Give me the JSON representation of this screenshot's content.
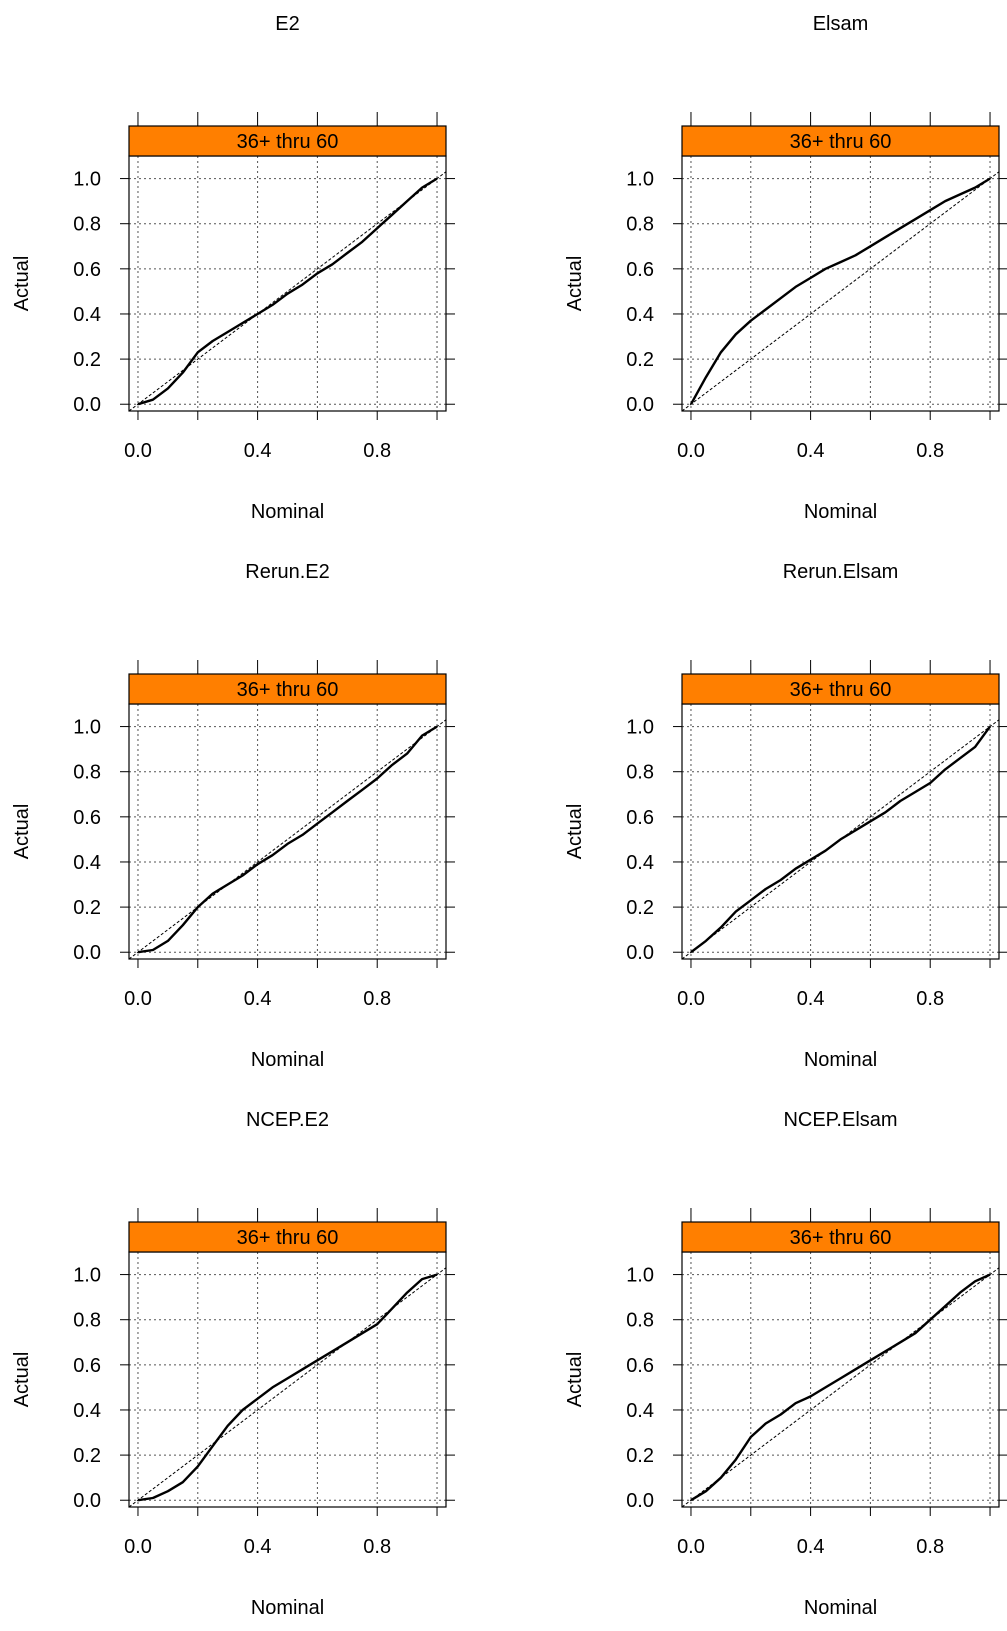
{
  "chart_data": [
    {
      "type": "line",
      "title": "E2",
      "strip_label": "36+ thru 60",
      "xlabel": "Nominal",
      "ylabel": "Actual",
      "xlim": [
        -0.03,
        1.03
      ],
      "ylim": [
        -0.03,
        1.1
      ],
      "xticks": [
        0.0,
        0.4,
        0.8
      ],
      "xtick_labels": [
        "0.0",
        "0.4",
        "0.8"
      ],
      "yticks": [
        0.0,
        0.2,
        0.4,
        0.6,
        0.8,
        1.0
      ],
      "ytick_labels": [
        "0.0",
        "0.2",
        "0.4",
        "0.6",
        "0.8",
        "1.0"
      ],
      "grid": true,
      "strip_color": "#ff7f00",
      "reference_line": [
        [
          0,
          0
        ],
        [
          1,
          1
        ]
      ],
      "x": [
        0.0,
        0.05,
        0.1,
        0.15,
        0.2,
        0.25,
        0.3,
        0.35,
        0.4,
        0.45,
        0.5,
        0.55,
        0.6,
        0.65,
        0.7,
        0.75,
        0.8,
        0.85,
        0.9,
        0.95,
        1.0
      ],
      "y": [
        0.0,
        0.02,
        0.07,
        0.14,
        0.23,
        0.28,
        0.32,
        0.36,
        0.4,
        0.44,
        0.49,
        0.53,
        0.58,
        0.62,
        0.67,
        0.72,
        0.78,
        0.84,
        0.9,
        0.96,
        1.0
      ]
    },
    {
      "type": "line",
      "title": "Elsam",
      "strip_label": "36+ thru 60",
      "xlabel": "Nominal",
      "ylabel": "Actual",
      "xlim": [
        -0.03,
        1.03
      ],
      "ylim": [
        -0.03,
        1.1
      ],
      "xticks": [
        0.0,
        0.4,
        0.8
      ],
      "xtick_labels": [
        "0.0",
        "0.4",
        "0.8"
      ],
      "yticks": [
        0.0,
        0.2,
        0.4,
        0.6,
        0.8,
        1.0
      ],
      "ytick_labels": [
        "0.0",
        "0.2",
        "0.4",
        "0.6",
        "0.8",
        "1.0"
      ],
      "grid": true,
      "strip_color": "#ff7f00",
      "reference_line": [
        [
          0,
          0
        ],
        [
          1,
          1
        ]
      ],
      "x": [
        0.0,
        0.05,
        0.1,
        0.15,
        0.2,
        0.25,
        0.3,
        0.35,
        0.4,
        0.45,
        0.5,
        0.55,
        0.6,
        0.65,
        0.7,
        0.75,
        0.8,
        0.85,
        0.9,
        0.95,
        1.0
      ],
      "y": [
        0.0,
        0.12,
        0.23,
        0.31,
        0.37,
        0.42,
        0.47,
        0.52,
        0.56,
        0.6,
        0.63,
        0.66,
        0.7,
        0.74,
        0.78,
        0.82,
        0.86,
        0.9,
        0.93,
        0.96,
        1.0
      ]
    },
    {
      "type": "line",
      "title": "Rerun.E2",
      "strip_label": "36+ thru 60",
      "xlabel": "Nominal",
      "ylabel": "Actual",
      "xlim": [
        -0.03,
        1.03
      ],
      "ylim": [
        -0.03,
        1.1
      ],
      "xticks": [
        0.0,
        0.4,
        0.8
      ],
      "xtick_labels": [
        "0.0",
        "0.4",
        "0.8"
      ],
      "yticks": [
        0.0,
        0.2,
        0.4,
        0.6,
        0.8,
        1.0
      ],
      "ytick_labels": [
        "0.0",
        "0.2",
        "0.4",
        "0.6",
        "0.8",
        "1.0"
      ],
      "grid": true,
      "strip_color": "#ff7f00",
      "reference_line": [
        [
          0,
          0
        ],
        [
          1,
          1
        ]
      ],
      "x": [
        0.0,
        0.05,
        0.1,
        0.15,
        0.2,
        0.25,
        0.3,
        0.35,
        0.4,
        0.45,
        0.5,
        0.55,
        0.6,
        0.65,
        0.7,
        0.75,
        0.8,
        0.85,
        0.9,
        0.95,
        1.0
      ],
      "y": [
        0.0,
        0.01,
        0.05,
        0.12,
        0.2,
        0.26,
        0.3,
        0.34,
        0.39,
        0.43,
        0.48,
        0.52,
        0.57,
        0.62,
        0.67,
        0.72,
        0.77,
        0.83,
        0.88,
        0.96,
        1.0
      ]
    },
    {
      "type": "line",
      "title": "Rerun.Elsam",
      "strip_label": "36+ thru 60",
      "xlabel": "Nominal",
      "ylabel": "Actual",
      "xlim": [
        -0.03,
        1.03
      ],
      "ylim": [
        -0.03,
        1.1
      ],
      "xticks": [
        0.0,
        0.4,
        0.8
      ],
      "xtick_labels": [
        "0.0",
        "0.4",
        "0.8"
      ],
      "yticks": [
        0.0,
        0.2,
        0.4,
        0.6,
        0.8,
        1.0
      ],
      "ytick_labels": [
        "0.0",
        "0.2",
        "0.4",
        "0.6",
        "0.8",
        "1.0"
      ],
      "grid": true,
      "strip_color": "#ff7f00",
      "reference_line": [
        [
          0,
          0
        ],
        [
          1,
          1
        ]
      ],
      "x": [
        0.0,
        0.05,
        0.1,
        0.15,
        0.2,
        0.25,
        0.3,
        0.35,
        0.4,
        0.45,
        0.5,
        0.55,
        0.6,
        0.65,
        0.7,
        0.75,
        0.8,
        0.85,
        0.9,
        0.95,
        1.0
      ],
      "y": [
        0.0,
        0.05,
        0.11,
        0.18,
        0.23,
        0.28,
        0.32,
        0.37,
        0.41,
        0.45,
        0.5,
        0.54,
        0.58,
        0.62,
        0.67,
        0.71,
        0.75,
        0.81,
        0.86,
        0.91,
        1.0
      ]
    },
    {
      "type": "line",
      "title": "NCEP.E2",
      "strip_label": "36+ thru 60",
      "xlabel": "Nominal",
      "ylabel": "Actual",
      "xlim": [
        -0.03,
        1.03
      ],
      "ylim": [
        -0.03,
        1.1
      ],
      "xticks": [
        0.0,
        0.4,
        0.8
      ],
      "xtick_labels": [
        "0.0",
        "0.4",
        "0.8"
      ],
      "yticks": [
        0.0,
        0.2,
        0.4,
        0.6,
        0.8,
        1.0
      ],
      "ytick_labels": [
        "0.0",
        "0.2",
        "0.4",
        "0.6",
        "0.8",
        "1.0"
      ],
      "grid": true,
      "strip_color": "#ff7f00",
      "reference_line": [
        [
          0,
          0
        ],
        [
          1,
          1
        ]
      ],
      "x": [
        0.0,
        0.05,
        0.1,
        0.15,
        0.2,
        0.25,
        0.3,
        0.35,
        0.4,
        0.45,
        0.5,
        0.55,
        0.6,
        0.65,
        0.7,
        0.75,
        0.8,
        0.85,
        0.9,
        0.95,
        1.0
      ],
      "y": [
        0.0,
        0.01,
        0.04,
        0.08,
        0.15,
        0.24,
        0.33,
        0.4,
        0.45,
        0.5,
        0.54,
        0.58,
        0.62,
        0.66,
        0.7,
        0.74,
        0.78,
        0.85,
        0.92,
        0.98,
        1.0
      ]
    },
    {
      "type": "line",
      "title": "NCEP.Elsam",
      "strip_label": "36+ thru 60",
      "xlabel": "Nominal",
      "ylabel": "Actual",
      "xlim": [
        -0.03,
        1.03
      ],
      "ylim": [
        -0.03,
        1.1
      ],
      "xticks": [
        0.0,
        0.4,
        0.8
      ],
      "xtick_labels": [
        "0.0",
        "0.4",
        "0.8"
      ],
      "yticks": [
        0.0,
        0.2,
        0.4,
        0.6,
        0.8,
        1.0
      ],
      "ytick_labels": [
        "0.0",
        "0.2",
        "0.4",
        "0.6",
        "0.8",
        "1.0"
      ],
      "grid": true,
      "strip_color": "#ff7f00",
      "reference_line": [
        [
          0,
          0
        ],
        [
          1,
          1
        ]
      ],
      "x": [
        0.0,
        0.05,
        0.1,
        0.15,
        0.2,
        0.25,
        0.3,
        0.35,
        0.4,
        0.45,
        0.5,
        0.55,
        0.6,
        0.65,
        0.7,
        0.75,
        0.8,
        0.85,
        0.9,
        0.95,
        1.0
      ],
      "y": [
        0.0,
        0.04,
        0.1,
        0.18,
        0.28,
        0.34,
        0.38,
        0.43,
        0.46,
        0.5,
        0.54,
        0.58,
        0.62,
        0.66,
        0.7,
        0.74,
        0.8,
        0.86,
        0.92,
        0.97,
        1.0
      ]
    }
  ]
}
